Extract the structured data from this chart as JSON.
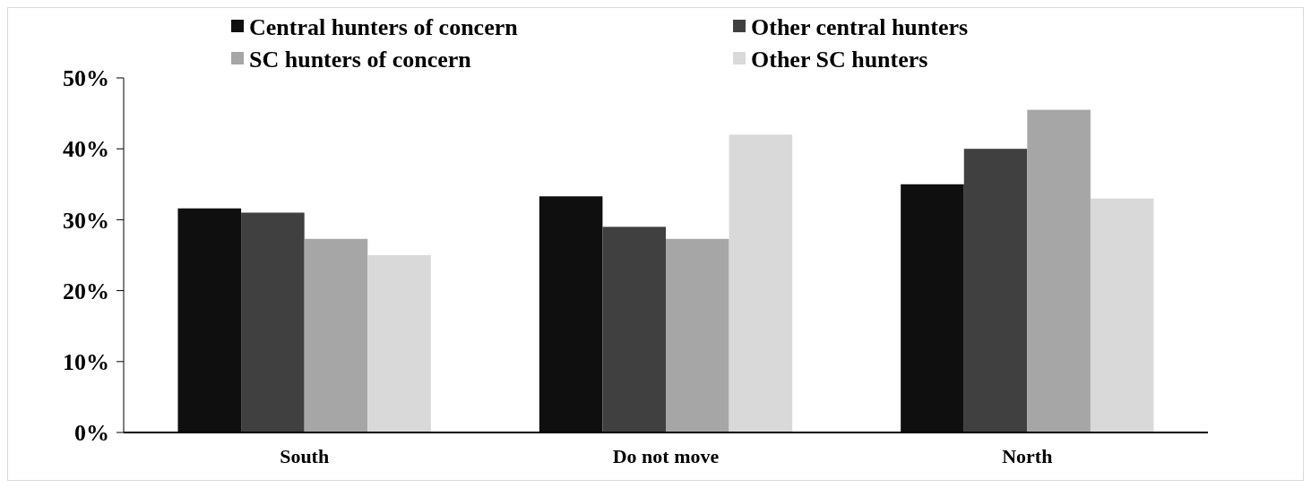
{
  "chart_data": {
    "type": "bar",
    "categories": [
      "South",
      "Do not move",
      "North"
    ],
    "series": [
      {
        "name": "Central hunters of concern",
        "color": "#0f0f0f",
        "values": [
          31.6,
          33.3,
          35
        ]
      },
      {
        "name": "Other central hunters",
        "color": "#404040",
        "values": [
          31,
          29,
          40
        ]
      },
      {
        "name": "SC hunters of concern",
        "color": "#a6a6a6",
        "values": [
          27.3,
          27.3,
          45.5
        ]
      },
      {
        "name": "Other SC hunters",
        "color": "#d9d9d9",
        "values": [
          25,
          42,
          33
        ]
      }
    ],
    "ylim": [
      0,
      50
    ],
    "yticks": [
      {
        "value": 0,
        "label": "0%"
      },
      {
        "value": 10,
        "label": "10%"
      },
      {
        "value": 20,
        "label": "20%"
      },
      {
        "value": 30,
        "label": "30%"
      },
      {
        "value": 40,
        "label": "40%"
      },
      {
        "value": 50,
        "label": "50%"
      }
    ],
    "grid": false,
    "legend": "top"
  }
}
